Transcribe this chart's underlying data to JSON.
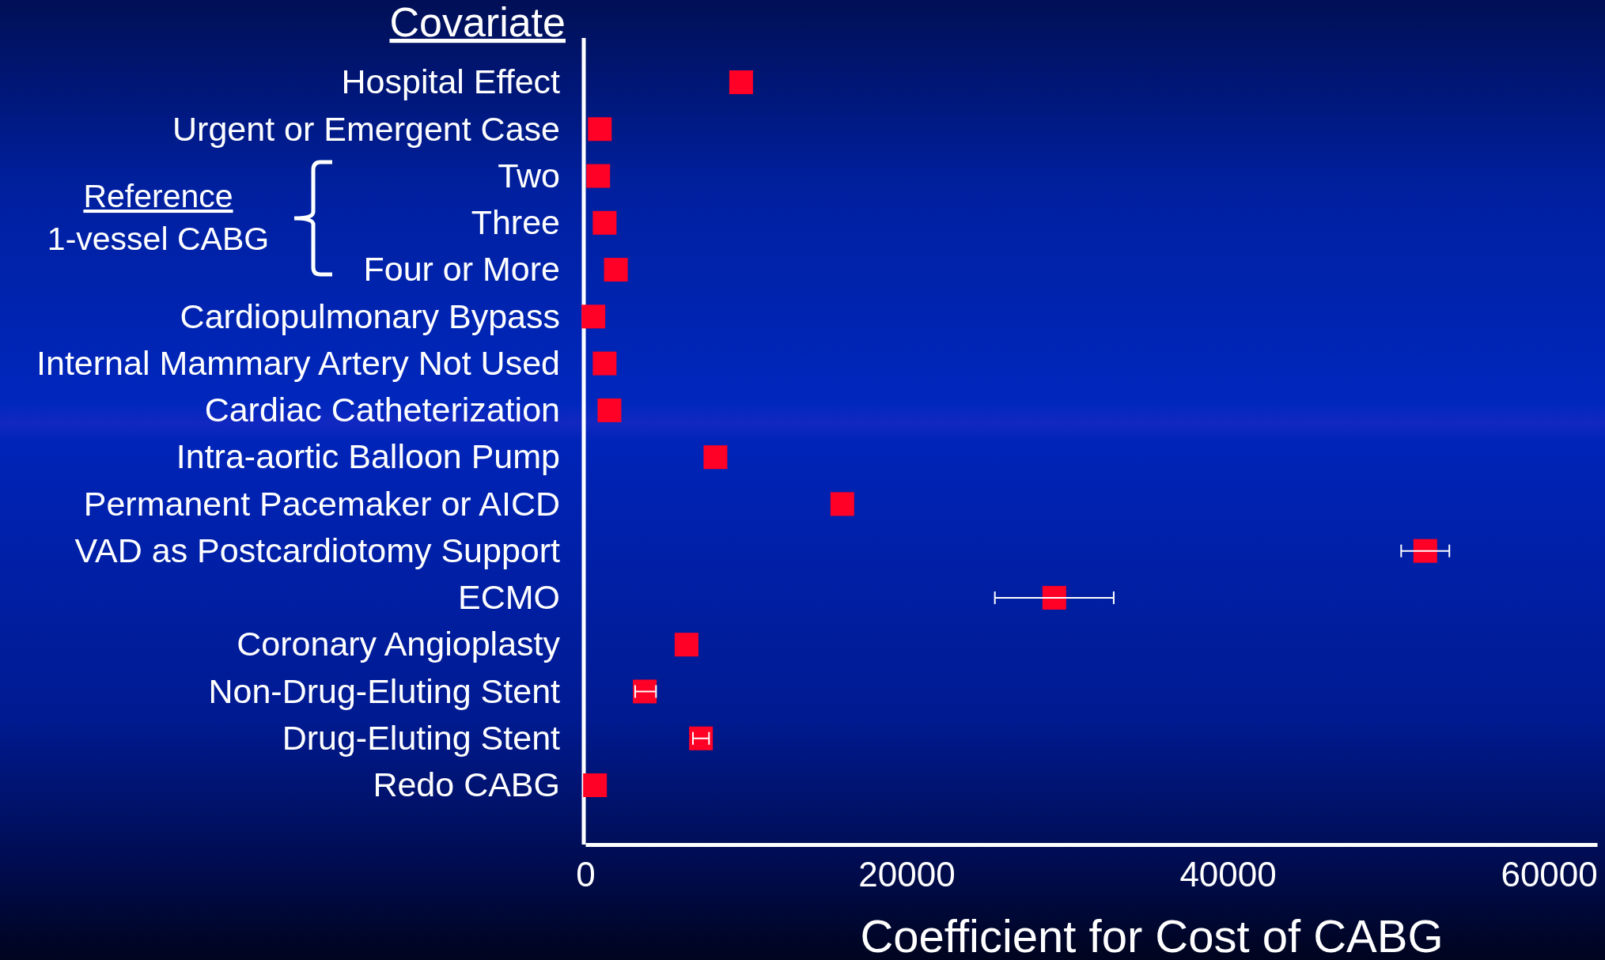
{
  "chart_data": {
    "type": "scatter",
    "orientation": "horizontal",
    "ylabel": "Covariate",
    "xlabel": "Coefficient for Cost of CABG",
    "categories": [
      "Hospital Effect",
      "Urgent or Emergent Case",
      "Two",
      "Three",
      "Four or More",
      "Cardiopulmonary Bypass",
      "Internal Mammary Artery Not Used",
      "Cardiac Catheterization",
      "Intra-aortic Balloon Pump",
      "Permanent Pacemaker or AICD",
      "VAD as Postcardiotomy Support",
      "ECMO",
      "Coronary Angioplasty",
      "Non-Drug-Eluting Stent",
      "Drug-Eluting Stent",
      "Redo CABG"
    ],
    "series": [
      {
        "color": "#ff0026",
        "values": [
          9700,
          900,
          800,
          1200,
          1900,
          500,
          1200,
          1500,
          8100,
          16000,
          52300,
          29200,
          6300,
          3700,
          7200,
          600
        ],
        "errors": [
          null,
          null,
          null,
          null,
          null,
          null,
          null,
          null,
          null,
          null,
          [
            50800,
            53800
          ],
          [
            25500,
            32900
          ],
          null,
          [
            3100,
            4400
          ],
          [
            6700,
            7700
          ],
          null
        ]
      }
    ],
    "xlim": [
      0,
      63000
    ],
    "xticks": [
      0,
      20000,
      40000,
      60000
    ],
    "marker": "square",
    "grid": false,
    "annotations": [
      "Reference",
      "1-vessel CABG"
    ]
  }
}
